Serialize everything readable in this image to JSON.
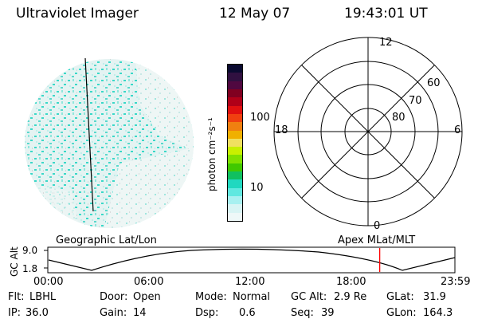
{
  "header": {
    "instrument": "Ultraviolet Imager",
    "date": "12 May 07",
    "time": "19:43:01 UT"
  },
  "colorbar": {
    "label": "photon cm⁻²s⁻¹",
    "ticks": [
      "100",
      "10"
    ],
    "colors": [
      "#0a0a30",
      "#301040",
      "#500840",
      "#800020",
      "#b00018",
      "#e01010",
      "#f04010",
      "#f08010",
      "#f0b000",
      "#f0e060",
      "#c8f000",
      "#80e000",
      "#40c800",
      "#10c060",
      "#20d8c0",
      "#60e8e0",
      "#a8f0f0",
      "#d8f4f4",
      "#eef8f8"
    ]
  },
  "polar": {
    "hour_labels": {
      "top": "12",
      "left": "18",
      "right": "6",
      "bottom": "0"
    },
    "lat_labels": [
      "60",
      "70",
      "80"
    ]
  },
  "panel_labels": {
    "left": "Geographic Lat/Lon",
    "right": "Apex  MLat/MLT"
  },
  "timeline": {
    "axis_label": "GC Alt",
    "y_ticks": [
      "9.0",
      "1.8"
    ],
    "x_ticks": [
      "00:00",
      "06:00",
      "12:00",
      "18:00",
      "23:59"
    ],
    "current_time_fraction": 0.815
  },
  "status": {
    "flt_label": "Flt:",
    "flt_value": "LBHL",
    "ip_label": "IP:",
    "ip_value": "36.0",
    "door_label": "Door:",
    "door_value": "Open",
    "gain_label": "Gain:",
    "gain_value": "14",
    "mode_label": "Mode:",
    "mode_value": "Normal",
    "dsp_label": "Dsp:",
    "dsp_value": "0.6",
    "gcalt_label": "GC Alt:",
    "gcalt_value": "2.9 Re",
    "seq_label": "Seq:",
    "seq_value": "39",
    "glat_label": "GLat:",
    "glat_value": "31.9",
    "glon_label": "GLon:",
    "glon_value": "164.3"
  },
  "colors": {
    "marker": "#ff0000",
    "disk_base": "#dff3f1",
    "disk_cyan": "#3ad8c8"
  }
}
